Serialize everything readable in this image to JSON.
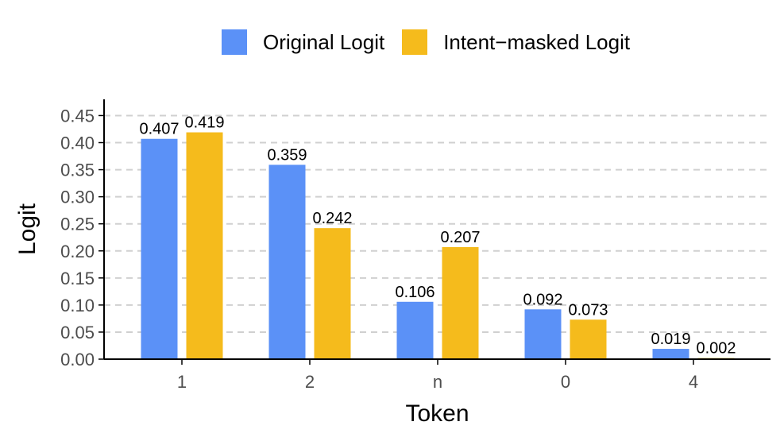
{
  "colors": {
    "original": "#5b91f7",
    "masked": "#f5bb1c",
    "grid": "#d0d0d0",
    "axis": "#000000",
    "tick_text": "#4d4d4d"
  },
  "legend": {
    "items": [
      {
        "label": "Original Logit",
        "color": "#5b91f7"
      },
      {
        "label": "Intent−masked Logit",
        "color": "#f5bb1c"
      }
    ],
    "placement": "top"
  },
  "chart_data": {
    "type": "bar",
    "title": "",
    "xlabel": "Token",
    "ylabel": "Logit",
    "categories": [
      "1",
      "2",
      "n",
      "0",
      "4"
    ],
    "series": [
      {
        "name": "Original Logit",
        "values": [
          0.407,
          0.359,
          0.106,
          0.092,
          0.019
        ],
        "color": "#5b91f7"
      },
      {
        "name": "Intent−masked Logit",
        "values": [
          0.419,
          0.242,
          0.207,
          0.073,
          0.002
        ],
        "color": "#f5bb1c"
      }
    ],
    "ylim": [
      0,
      0.48
    ],
    "yticks": [
      "0.00",
      "0.05",
      "0.10",
      "0.15",
      "0.20",
      "0.25",
      "0.30",
      "0.35",
      "0.40",
      "0.45"
    ],
    "data_labels": [
      [
        "0.407",
        "0.359",
        "0.106",
        "0.092",
        "0.019"
      ],
      [
        "0.419",
        "0.242",
        "0.207",
        "0.073",
        "0.002"
      ]
    ],
    "grid": "horizontal dashed",
    "legend": "top"
  }
}
